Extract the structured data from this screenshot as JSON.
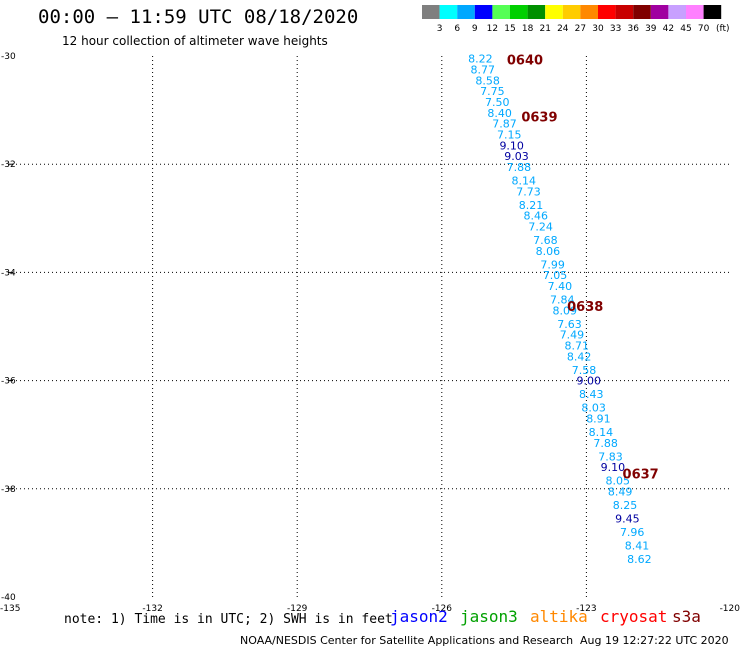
{
  "header": {
    "title": "00:00 – 11:59 UTC 08/18/2020",
    "subtitle": "12 hour collection of altimeter wave heights"
  },
  "legend": {
    "unit_label": "(ft)",
    "bins": [
      {
        "label": "3",
        "color": "#7f7f7f"
      },
      {
        "label": "6",
        "color": "#00ffff"
      },
      {
        "label": "9",
        "color": "#00a8ff"
      },
      {
        "label": "12",
        "color": "#0000ff"
      },
      {
        "label": "15",
        "color": "#55ff55"
      },
      {
        "label": "18",
        "color": "#00d000"
      },
      {
        "label": "21",
        "color": "#009000"
      },
      {
        "label": "24",
        "color": "#ffff00"
      },
      {
        "label": "27",
        "color": "#ffcc00"
      },
      {
        "label": "30",
        "color": "#ff8800"
      },
      {
        "label": "33",
        "color": "#ff0000"
      },
      {
        "label": "36",
        "color": "#c80000"
      },
      {
        "label": "39",
        "color": "#800000"
      },
      {
        "label": "42",
        "color": "#a000a0"
      },
      {
        "label": "45",
        "color": "#c8a0ff"
      },
      {
        "label": "70",
        "color": "#ff80ff"
      },
      {
        "label": "",
        "color": "#000000"
      }
    ]
  },
  "footer": {
    "note": "note: 1) Time is in UTC; 2) SWH is in feet",
    "satellites": [
      {
        "name": "jason2",
        "color": "#0000ff"
      },
      {
        "name": "jason3",
        "color": "#00a000"
      },
      {
        "name": "altika",
        "color": "#ff8800"
      },
      {
        "name": "cryosat",
        "color": "#ff0000"
      },
      {
        "name": "s3a",
        "color": "#800000"
      }
    ],
    "credit": "NOAA/NESDIS Center for Satellite Applications and Research",
    "timestamp": "Aug 19 12:27:22 UTC 2020"
  },
  "chart_data": {
    "type": "scatter",
    "xlim": [
      -135,
      -120
    ],
    "ylim": [
      -40,
      -30
    ],
    "xticks": [
      {
        "v": -135,
        "label": "-135"
      },
      {
        "v": -132,
        "label": "-132"
      },
      {
        "v": -129,
        "label": "-129"
      },
      {
        "v": -126,
        "label": "-126"
      },
      {
        "v": -123,
        "label": "-123"
      },
      {
        "v": -120,
        "label": "-120"
      }
    ],
    "yticks": [
      {
        "v": -30,
        "label": "-30"
      },
      {
        "v": -32,
        "label": "-32"
      },
      {
        "v": -34,
        "label": "-34"
      },
      {
        "v": -36,
        "label": "-36"
      },
      {
        "v": -38,
        "label": "-38"
      },
      {
        "v": -40,
        "label": "-40"
      }
    ],
    "grid": true,
    "low_color": "#00a8ff",
    "high_color": "#0000a0",
    "points": [
      {
        "lon": -125.2,
        "lat": -30.05,
        "swh": "8.22"
      },
      {
        "lon": -125.15,
        "lat": -30.25,
        "swh": "8.77"
      },
      {
        "lon": -125.05,
        "lat": -30.45,
        "swh": "8.58"
      },
      {
        "lon": -124.95,
        "lat": -30.65,
        "swh": "7.75"
      },
      {
        "lon": -124.85,
        "lat": -30.85,
        "swh": "7.50"
      },
      {
        "lon": -124.8,
        "lat": -31.05,
        "swh": "8.40"
      },
      {
        "lon": -124.7,
        "lat": -31.25,
        "swh": "7.87"
      },
      {
        "lon": -124.6,
        "lat": -31.45,
        "swh": "7.15"
      },
      {
        "lon": -124.55,
        "lat": -31.65,
        "swh": "9.10"
      },
      {
        "lon": -124.45,
        "lat": -31.85,
        "swh": "9.03"
      },
      {
        "lon": -124.4,
        "lat": -32.05,
        "swh": "7.88"
      },
      {
        "lon": -124.3,
        "lat": -32.3,
        "swh": "8.14"
      },
      {
        "lon": -124.2,
        "lat": -32.5,
        "swh": "7.73"
      },
      {
        "lon": -124.15,
        "lat": -32.75,
        "swh": "8.21"
      },
      {
        "lon": -124.05,
        "lat": -32.95,
        "swh": "8.46"
      },
      {
        "lon": -123.95,
        "lat": -33.15,
        "swh": "7.24"
      },
      {
        "lon": -123.85,
        "lat": -33.4,
        "swh": "7.68"
      },
      {
        "lon": -123.8,
        "lat": -33.6,
        "swh": "8.06"
      },
      {
        "lon": -123.7,
        "lat": -33.85,
        "swh": "7.99"
      },
      {
        "lon": -123.65,
        "lat": -34.05,
        "swh": "7.05"
      },
      {
        "lon": -123.55,
        "lat": -34.25,
        "swh": "7.40"
      },
      {
        "lon": -123.5,
        "lat": -34.5,
        "swh": "7.84"
      },
      {
        "lon": -123.45,
        "lat": -34.7,
        "swh": "8.09"
      },
      {
        "lon": -123.35,
        "lat": -34.95,
        "swh": "7.63"
      },
      {
        "lon": -123.3,
        "lat": -35.15,
        "swh": "7.49"
      },
      {
        "lon": -123.2,
        "lat": -35.35,
        "swh": "8.71"
      },
      {
        "lon": -123.15,
        "lat": -35.55,
        "swh": "8.42"
      },
      {
        "lon": -123.05,
        "lat": -35.8,
        "swh": "7.58"
      },
      {
        "lon": -122.95,
        "lat": -36.0,
        "swh": "9.00"
      },
      {
        "lon": -122.9,
        "lat": -36.25,
        "swh": "8.43"
      },
      {
        "lon": -122.85,
        "lat": -36.5,
        "swh": "8.03"
      },
      {
        "lon": -122.75,
        "lat": -36.7,
        "swh": "8.91"
      },
      {
        "lon": -122.7,
        "lat": -36.95,
        "swh": "8.14"
      },
      {
        "lon": -122.6,
        "lat": -37.15,
        "swh": "7.88"
      },
      {
        "lon": -122.5,
        "lat": -37.4,
        "swh": "7.83"
      },
      {
        "lon": -122.45,
        "lat": -37.6,
        "swh": "9.10"
      },
      {
        "lon": -122.35,
        "lat": -37.85,
        "swh": "8.05"
      },
      {
        "lon": -122.3,
        "lat": -38.05,
        "swh": "8.49"
      },
      {
        "lon": -122.2,
        "lat": -38.3,
        "swh": "8.25"
      },
      {
        "lon": -122.15,
        "lat": -38.55,
        "swh": "9.45"
      },
      {
        "lon": -122.05,
        "lat": -38.8,
        "swh": "7.96"
      },
      {
        "lon": -121.95,
        "lat": -39.05,
        "swh": "8.41"
      },
      {
        "lon": -121.9,
        "lat": -39.3,
        "swh": "8.62"
      }
    ],
    "time_labels": [
      {
        "lon": -124.65,
        "lat": -30.05,
        "text": "0640",
        "color": "#800000"
      },
      {
        "lon": -124.35,
        "lat": -31.1,
        "text": "0639",
        "color": "#800000"
      },
      {
        "lon": -123.4,
        "lat": -34.6,
        "text": "0638",
        "color": "#800000"
      },
      {
        "lon": -122.25,
        "lat": -37.7,
        "text": "0637",
        "color": "#800000"
      }
    ]
  }
}
